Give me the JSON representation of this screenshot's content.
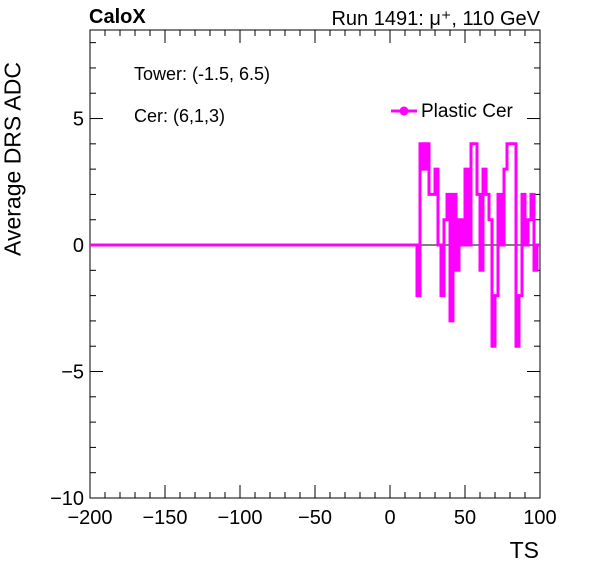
{
  "header": {
    "brand": "CaloX",
    "run": "Run 1491: μ⁺, 110 GeV"
  },
  "annotations": {
    "tower": "Tower: (-1.5, 6.5)",
    "channel": "Cer: (6,1,3)"
  },
  "colors": {
    "series": "#ff00ff",
    "axis": "#000000",
    "frame_background": "#ffffff"
  },
  "chart_data": {
    "type": "line",
    "step": true,
    "xlabel": "TS",
    "ylabel": "Average DRS ADC",
    "xlim": [
      -200,
      100
    ],
    "ylim": [
      -10,
      8.5
    ],
    "xticks": [
      -200,
      -150,
      -100,
      -50,
      0,
      50,
      100
    ],
    "xtick_labels": [
      "−200",
      "−150",
      "−100",
      "−50",
      "0",
      "50",
      "100"
    ],
    "yticks": [
      -10,
      -5,
      0,
      5
    ],
    "ytick_labels": [
      "−10",
      "−5",
      "0",
      "5"
    ],
    "legend": {
      "position": "top-right"
    },
    "zero_line": true,
    "grid": false,
    "series": [
      {
        "name": "Plastic Cer",
        "points": [
          [
            -200,
            0
          ],
          [
            18,
            0
          ],
          [
            18,
            -2
          ],
          [
            20,
            -2
          ],
          [
            20,
            4
          ],
          [
            22,
            4
          ],
          [
            22,
            3
          ],
          [
            24,
            3
          ],
          [
            24,
            4
          ],
          [
            26,
            4
          ],
          [
            26,
            2
          ],
          [
            30,
            2
          ],
          [
            30,
            3
          ],
          [
            32,
            3
          ],
          [
            32,
            0
          ],
          [
            34,
            0
          ],
          [
            34,
            -2
          ],
          [
            36,
            -2
          ],
          [
            36,
            1
          ],
          [
            38,
            1
          ],
          [
            38,
            2
          ],
          [
            40,
            2
          ],
          [
            40,
            -3
          ],
          [
            42,
            -3
          ],
          [
            42,
            2
          ],
          [
            44,
            2
          ],
          [
            44,
            -1
          ],
          [
            46,
            -1
          ],
          [
            46,
            1
          ],
          [
            48,
            1
          ],
          [
            48,
            0
          ],
          [
            50,
            0
          ],
          [
            50,
            3
          ],
          [
            52,
            3
          ],
          [
            52,
            0
          ],
          [
            54,
            0
          ],
          [
            54,
            4
          ],
          [
            58,
            4
          ],
          [
            58,
            2
          ],
          [
            60,
            2
          ],
          [
            60,
            -1
          ],
          [
            62,
            -1
          ],
          [
            62,
            3
          ],
          [
            64,
            3
          ],
          [
            64,
            2
          ],
          [
            66,
            2
          ],
          [
            66,
            1
          ],
          [
            68,
            1
          ],
          [
            68,
            -4
          ],
          [
            70,
            -4
          ],
          [
            70,
            -2
          ],
          [
            72,
            -2
          ],
          [
            72,
            2
          ],
          [
            74,
            2
          ],
          [
            74,
            0
          ],
          [
            76,
            0
          ],
          [
            76,
            3
          ],
          [
            78,
            3
          ],
          [
            78,
            4
          ],
          [
            84,
            4
          ],
          [
            84,
            -4
          ],
          [
            86,
            -4
          ],
          [
            86,
            -2
          ],
          [
            88,
            -2
          ],
          [
            88,
            2
          ],
          [
            90,
            2
          ],
          [
            90,
            0
          ],
          [
            92,
            0
          ],
          [
            92,
            1
          ],
          [
            94,
            1
          ],
          [
            94,
            2
          ],
          [
            96,
            2
          ],
          [
            96,
            -1
          ],
          [
            98,
            -1
          ],
          [
            98,
            0
          ],
          [
            100,
            0
          ]
        ]
      }
    ]
  }
}
